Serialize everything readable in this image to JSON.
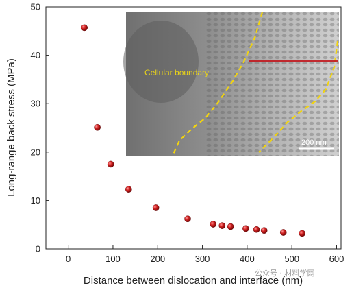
{
  "chart_data": {
    "type": "scatter",
    "title": "",
    "xlabel": "Distance between dislocation and interface (nm)",
    "ylabel": "Long-range back stress (MPa)",
    "xlim": [
      -50,
      610
    ],
    "ylim": [
      0,
      50
    ],
    "xticks": [
      0,
      100,
      200,
      300,
      400,
      500,
      600
    ],
    "yticks": [
      0,
      10,
      20,
      30,
      40,
      50
    ],
    "grid": false,
    "marker_color": "#c41f1f",
    "points": [
      {
        "x": 36,
        "y": 45.7
      },
      {
        "x": 65,
        "y": 25.1
      },
      {
        "x": 95,
        "y": 17.5
      },
      {
        "x": 135,
        "y": 12.3
      },
      {
        "x": 196,
        "y": 8.5
      },
      {
        "x": 267,
        "y": 6.2
      },
      {
        "x": 324,
        "y": 5.1
      },
      {
        "x": 344,
        "y": 4.8
      },
      {
        "x": 363,
        "y": 4.6
      },
      {
        "x": 397,
        "y": 4.2
      },
      {
        "x": 421,
        "y": 4.0
      },
      {
        "x": 438,
        "y": 3.8
      },
      {
        "x": 481,
        "y": 3.4
      },
      {
        "x": 523,
        "y": 3.2
      }
    ]
  },
  "inset": {
    "boundary_label": "Cellular boundary",
    "scale_bar_label": "200 nm",
    "boundary_color": "#f2d40f",
    "line_color": "#c0151b"
  },
  "watermark": "公众号 · 材料学网"
}
